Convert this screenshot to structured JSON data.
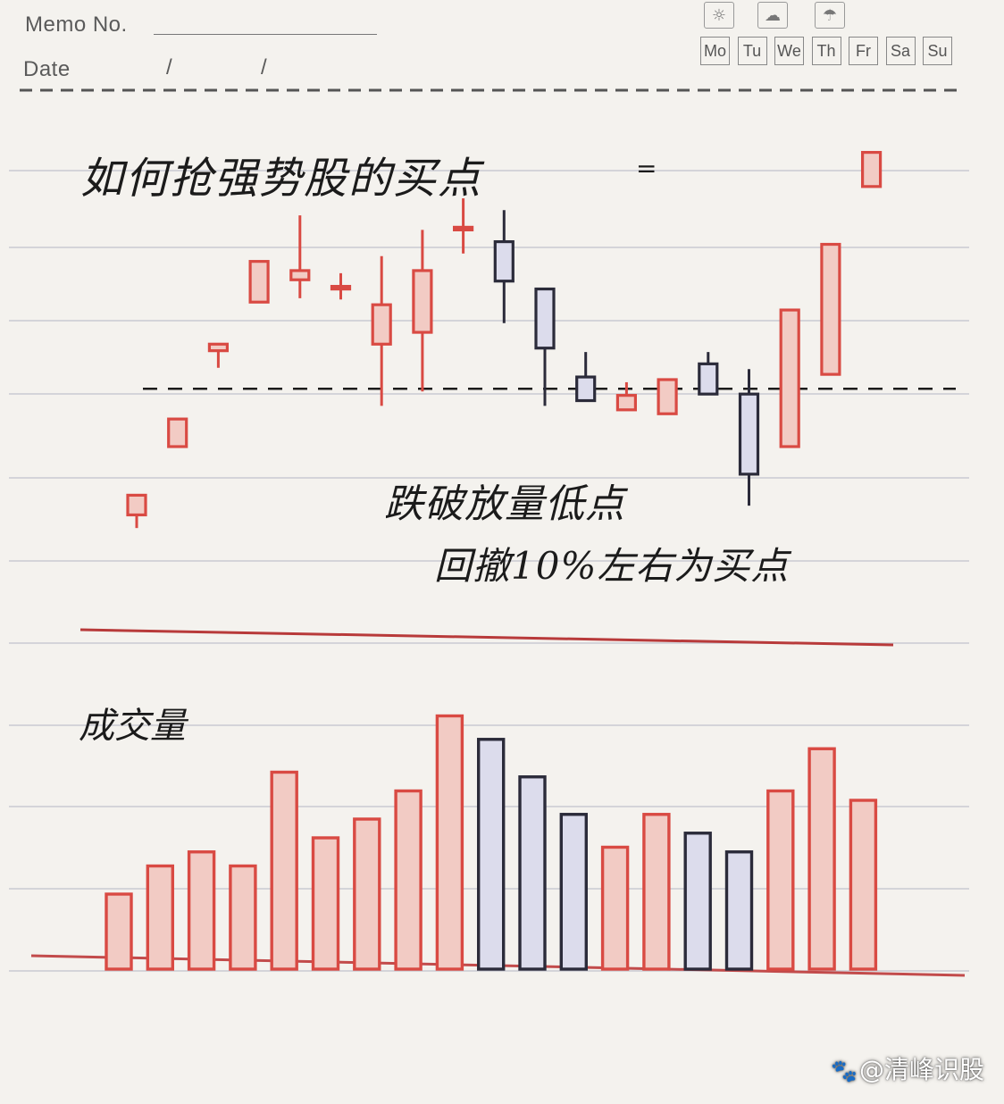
{
  "header": {
    "memo_label": "Memo No.",
    "date_label": "Date",
    "date_sep_1": "/",
    "date_sep_2": "/",
    "weather_icons": [
      "sun-icon",
      "cloud-sun-icon",
      "rain-icon"
    ],
    "weekdays": [
      "Mo",
      "Tu",
      "We",
      "Th",
      "Fr",
      "Sa",
      "Su"
    ]
  },
  "title": "如何抢强势股的买点",
  "colors": {
    "up": "#d94a43",
    "up_fill": "#f2cbc4",
    "down": "#2b2b3a",
    "down_fill": "#dcdcec",
    "ink": "#1b1b1b",
    "rule": "#c9c9d2",
    "paper": "#f4f2ee"
  },
  "chart_data": [
    {
      "type": "candlestick",
      "title": "如何抢强势股的买点",
      "annotations": [
        "跌破放量低点",
        "回撤10%左右为买点"
      ],
      "candles": [
        {
          "open": 5.0,
          "close": 6.5,
          "high": 6.5,
          "low": 4.0,
          "dir": "up"
        },
        {
          "open": 10.2,
          "close": 12.3,
          "high": 12.3,
          "low": 10.2,
          "dir": "up"
        },
        {
          "open": 17.5,
          "close": 18.0,
          "high": 18.0,
          "low": 16.2,
          "dir": "up"
        },
        {
          "open": 21.2,
          "close": 24.3,
          "high": 24.3,
          "low": 21.2,
          "dir": "up"
        },
        {
          "open": 22.9,
          "close": 23.6,
          "high": 27.8,
          "low": 21.5,
          "dir": "up"
        },
        {
          "open": 22.3,
          "close": 22.4,
          "high": 23.4,
          "low": 21.4,
          "dir": "up"
        },
        {
          "open": 18.0,
          "close": 21.0,
          "high": 24.7,
          "low": 13.3,
          "dir": "up"
        },
        {
          "open": 18.9,
          "close": 23.6,
          "high": 26.7,
          "low": 14.4,
          "dir": "up"
        },
        {
          "open": 26.8,
          "close": 26.9,
          "high": 29.1,
          "low": 24.9,
          "dir": "up"
        },
        {
          "open": 25.8,
          "close": 22.8,
          "high": 28.2,
          "low": 19.6,
          "dir": "down"
        },
        {
          "open": 22.2,
          "close": 17.7,
          "high": 22.2,
          "low": 13.3,
          "dir": "down"
        },
        {
          "open": 15.5,
          "close": 13.7,
          "high": 17.4,
          "low": 13.7,
          "dir": "down"
        },
        {
          "open": 13.0,
          "close": 14.1,
          "high": 15.1,
          "low": 13.0,
          "dir": "up"
        },
        {
          "open": 12.7,
          "close": 15.3,
          "high": 15.3,
          "low": 12.7,
          "dir": "up"
        },
        {
          "open": 16.5,
          "close": 14.2,
          "high": 17.4,
          "low": 14.2,
          "dir": "down"
        },
        {
          "open": 14.2,
          "close": 8.1,
          "high": 16.1,
          "low": 5.7,
          "dir": "down"
        },
        {
          "open": 10.2,
          "close": 20.6,
          "high": 20.6,
          "low": 10.2,
          "dir": "up"
        },
        {
          "open": 15.7,
          "close": 25.6,
          "high": 25.6,
          "low": 15.7,
          "dir": "up"
        },
        {
          "open": 30.0,
          "close": 32.6,
          "high": 32.6,
          "low": 30.0,
          "dir": "up"
        }
      ],
      "reference_line": {
        "value": 14.6,
        "style": "dashed"
      },
      "ylim": [
        0,
        34
      ]
    },
    {
      "type": "bar",
      "title": "成交量",
      "values": [
        {
          "v": 8,
          "dir": "up"
        },
        {
          "v": 11,
          "dir": "up"
        },
        {
          "v": 12.5,
          "dir": "up"
        },
        {
          "v": 11,
          "dir": "up"
        },
        {
          "v": 21,
          "dir": "up"
        },
        {
          "v": 14,
          "dir": "up"
        },
        {
          "v": 16,
          "dir": "up"
        },
        {
          "v": 19,
          "dir": "up"
        },
        {
          "v": 27,
          "dir": "up"
        },
        {
          "v": 24.5,
          "dir": "down"
        },
        {
          "v": 20.5,
          "dir": "down"
        },
        {
          "v": 16.5,
          "dir": "down"
        },
        {
          "v": 13,
          "dir": "up"
        },
        {
          "v": 16.5,
          "dir": "up"
        },
        {
          "v": 14.5,
          "dir": "down"
        },
        {
          "v": 12.5,
          "dir": "down"
        },
        {
          "v": 19,
          "dir": "up"
        },
        {
          "v": 23.5,
          "dir": "up"
        },
        {
          "v": 18,
          "dir": "up"
        }
      ],
      "ylim": [
        0,
        30
      ]
    }
  ]
}
